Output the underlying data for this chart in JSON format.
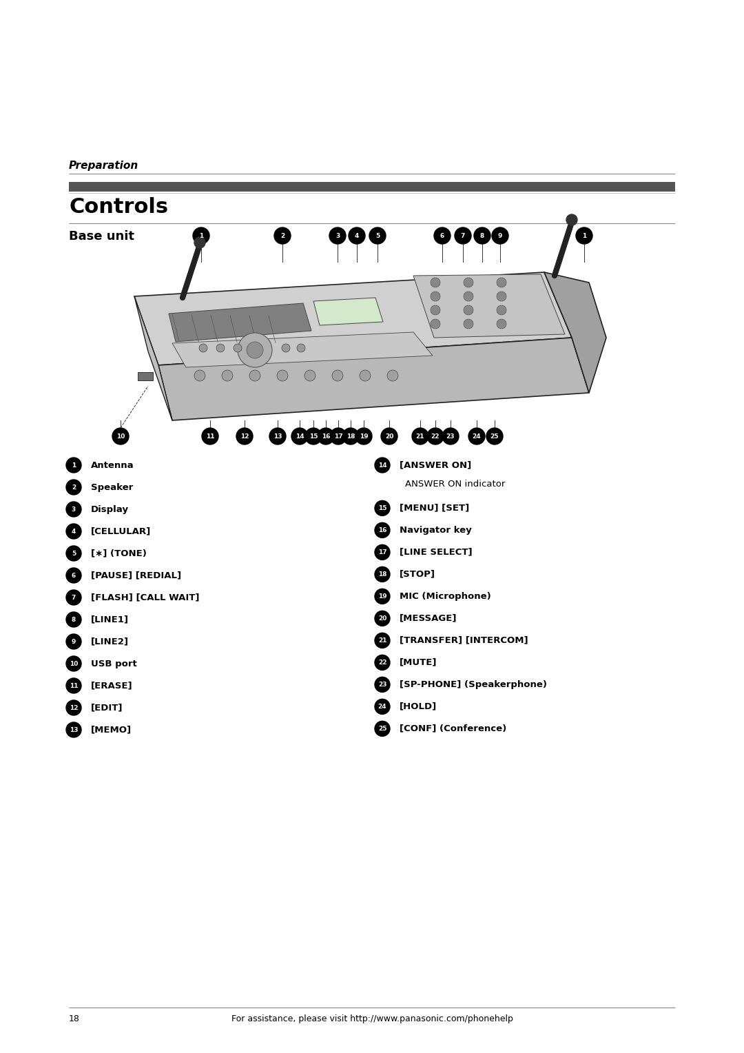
{
  "bg_color": "#ffffff",
  "header_italic": "Preparation",
  "title": "Controls",
  "subtitle": "Base unit",
  "left_items": [
    {
      "num": "1",
      "text": "Antenna"
    },
    {
      "num": "2",
      "text": "Speaker"
    },
    {
      "num": "3",
      "text": "Display"
    },
    {
      "num": "4",
      "text": "[CELLULAR]"
    },
    {
      "num": "5",
      "text": "[∗] (TONE)"
    },
    {
      "num": "6",
      "text": "[PAUSE] [REDIAL]"
    },
    {
      "num": "7",
      "text": "[FLASH] [CALL WAIT]"
    },
    {
      "num": "8",
      "text": "[LINE1]"
    },
    {
      "num": "9",
      "text": "[LINE2]"
    },
    {
      "num": "10",
      "text": "USB port"
    },
    {
      "num": "11",
      "text": "[ERASE]"
    },
    {
      "num": "12",
      "text": "[EDIT]"
    },
    {
      "num": "13",
      "text": "[MEMO]"
    }
  ],
  "right_items": [
    {
      "num": "14",
      "text": "[ANSWER ON]",
      "subtext": "ANSWER ON indicator"
    },
    {
      "num": "15",
      "text": "[MENU] [SET]"
    },
    {
      "num": "16",
      "text": "Navigator key"
    },
    {
      "num": "17",
      "text": "[LINE SELECT]"
    },
    {
      "num": "18",
      "text": "[STOP]"
    },
    {
      "num": "19",
      "text": "MIC (Microphone)"
    },
    {
      "num": "20",
      "text": "[MESSAGE]"
    },
    {
      "num": "21",
      "text": "[TRANSFER] [INTERCOM]"
    },
    {
      "num": "22",
      "text": "[MUTE]"
    },
    {
      "num": "23",
      "text": "[SP-PHONE] (Speakerphone)"
    },
    {
      "num": "24",
      "text": "[HOLD]"
    },
    {
      "num": "25",
      "text": "[CONF] (Conference)"
    }
  ],
  "footer_page": "18",
  "footer_text": "For assistance, please visit http://www.panasonic.com/phonehelp"
}
